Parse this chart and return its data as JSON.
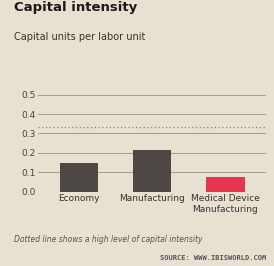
{
  "title": "Capital intensity",
  "subtitle": "Capital units per labor unit",
  "categories": [
    "Economy",
    "Manufacturing",
    "Medical Device\nManufacturing"
  ],
  "values": [
    0.145,
    0.215,
    0.077
  ],
  "bar_colors": [
    "#4d4843",
    "#4d4843",
    "#e8344e"
  ],
  "dotted_line_y": 0.335,
  "ylim": [
    0,
    0.55
  ],
  "yticks": [
    0.0,
    0.1,
    0.2,
    0.3,
    0.4,
    0.5
  ],
  "background_color": "#e8e0d0",
  "grid_color": "#9a9185",
  "title_fontsize": 9.5,
  "subtitle_fontsize": 7,
  "tick_fontsize": 6.5,
  "footer_text": "Dotted line shows a high level of capital intensity",
  "source_text": "SOURCE: WWW.IBISWORLD.COM",
  "footer_fontsize": 5.5,
  "source_fontsize": 5.0
}
